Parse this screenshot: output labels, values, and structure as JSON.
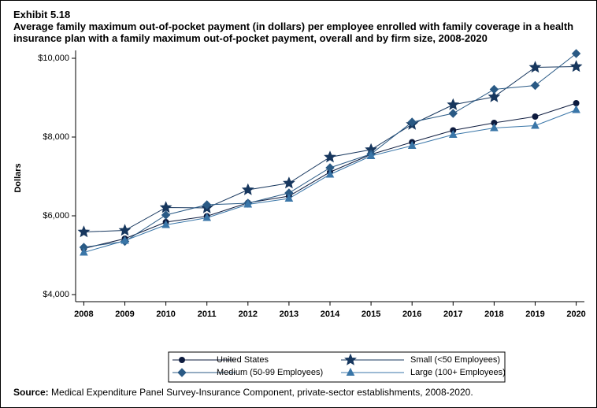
{
  "chart_data": {
    "type": "line",
    "title": "Exhibit 5.18",
    "subtitle": "Average family maximum out-of-pocket payment (in dollars) per employee enrolled with family coverage in a health insurance plan with a family maximum out-of-pocket payment, overall and by firm size, 2008-2020",
    "y_label": "Dollars",
    "source_label": "Source:",
    "source": "Medical Expenditure Panel Survey-Insurance Component, private-sector establishments, 2008-2020.",
    "x": [
      2008,
      2009,
      2010,
      2011,
      2012,
      2013,
      2014,
      2015,
      2016,
      2017,
      2018,
      2019,
      2020
    ],
    "series": [
      {
        "name": "United States",
        "color": "#0d1b3e",
        "marker": "circle",
        "values": [
          5170,
          5420,
          5840,
          5990,
          6330,
          6500,
          7110,
          7560,
          7870,
          8170,
          8360,
          8520,
          8860
        ]
      },
      {
        "name": "Small (<50 Employees)",
        "color": "#17375e",
        "marker": "star",
        "values": [
          5590,
          5630,
          6210,
          6200,
          6660,
          6830,
          7490,
          7680,
          8320,
          8820,
          9020,
          9770,
          9790
        ]
      },
      {
        "name": "Medium (50-99 Employees)",
        "color": "#2a5a85",
        "marker": "diamond",
        "values": [
          5200,
          5350,
          6020,
          6280,
          6320,
          6580,
          7220,
          7570,
          8380,
          8600,
          9210,
          9310,
          10120
        ]
      },
      {
        "name": "Large (100+ Employees)",
        "color": "#3a76a8",
        "marker": "triangle",
        "values": [
          5070,
          5370,
          5770,
          5950,
          6290,
          6440,
          7050,
          7520,
          7780,
          8060,
          8230,
          8290,
          8690
        ]
      }
    ],
    "xlim": [
      2007.8,
      2020.2
    ],
    "xticks": [
      2008,
      2009,
      2010,
      2011,
      2012,
      2013,
      2014,
      2015,
      2016,
      2017,
      2018,
      2019,
      2020
    ],
    "ylim": [
      3820,
      10200
    ],
    "yticks": [
      {
        "value": 4000,
        "label": "$4,000"
      },
      {
        "value": 6000,
        "label": "$6,000"
      },
      {
        "value": 8000,
        "label": "$8,000"
      },
      {
        "value": 10000,
        "label": "$10,000"
      }
    ],
    "legend": "bottom"
  }
}
